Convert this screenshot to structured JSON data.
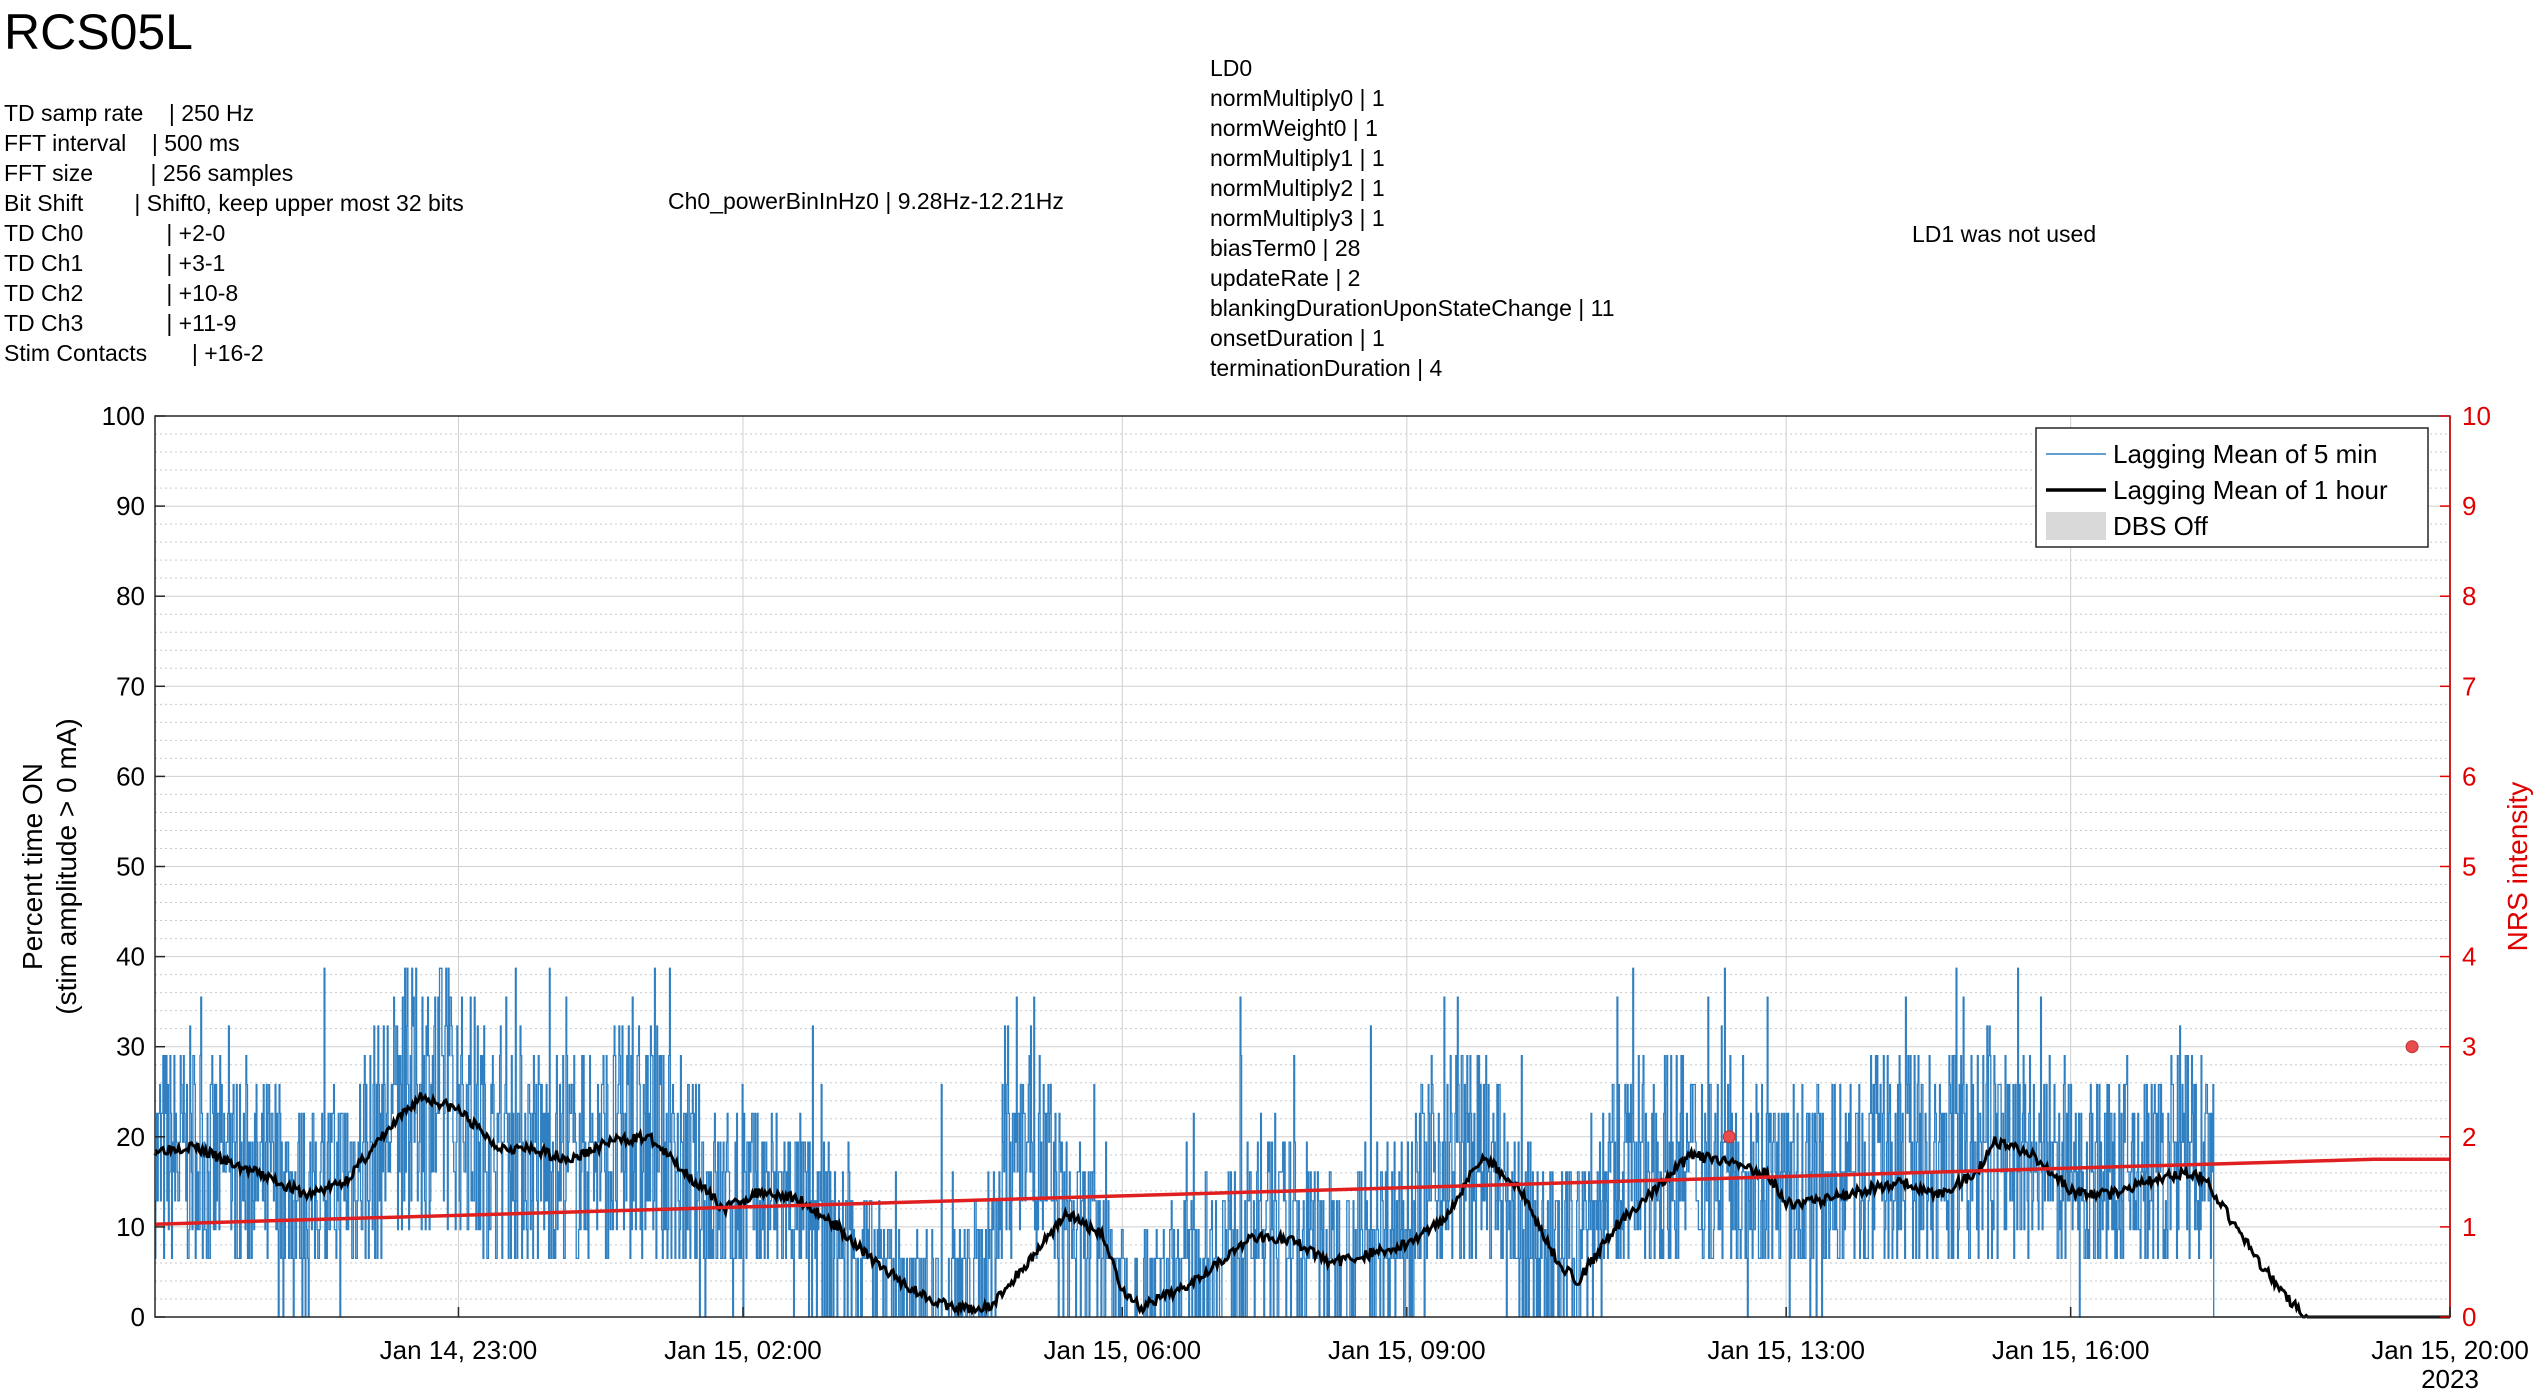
{
  "title": "RCS05L",
  "td_info": [
    "TD samp rate    | 250 Hz",
    "FFT interval    | 500 ms",
    "FFT size         | 256 samples",
    "Bit Shift        | Shift0, keep upper most 32 bits",
    "TD Ch0             | +2-0",
    "TD Ch1             | +3-1",
    "TD Ch2             | +10-8",
    "TD Ch3             | +11-9",
    "Stim Contacts       | +16-2"
  ],
  "ch0_power": "Ch0_powerBinInHz0 | 9.28Hz-12.21Hz",
  "ld0_info": [
    "LD0",
    "normMultiply0 | 1",
    "normWeight0 | 1",
    "normMultiply1 | 1",
    "normMultiply2 | 1",
    "normMultiply3 | 1",
    "biasTerm0 | 28",
    "updateRate | 2",
    "blankingDurationUponStateChange | 11",
    "onsetDuration | 1",
    "terminationDuration | 4"
  ],
  "ld1_info": "LD1 was not used",
  "colors": {
    "five_min": "#2f7fc1",
    "one_hour": "#000000",
    "trend": "#e02020",
    "nrs_marker": "#e84c4c",
    "dbs_off": "#d9d9d9",
    "right_axis": "#e00000"
  },
  "chart_data": {
    "type": "line",
    "title": "",
    "ylabel": [
      "Percent time ON",
      "(stim amplitude > 0 mA)"
    ],
    "ylabel_right": "NRS intensity",
    "xlim": [
      "2023-01-14 19:48",
      "2023-01-15 20:00"
    ],
    "ylim": [
      0,
      100
    ],
    "ylim_right": [
      0,
      10
    ],
    "yticks": [
      "0",
      "10",
      "20",
      "30",
      "40",
      "50",
      "60",
      "70",
      "80",
      "90",
      "100"
    ],
    "yticks_right": [
      "0",
      "1",
      "2",
      "3",
      "4",
      "5",
      "6",
      "7",
      "8",
      "9",
      "10"
    ],
    "xticks": [
      {
        "t": "2023-01-14 23:00",
        "label": "Jan 14, 23:00"
      },
      {
        "t": "2023-01-15 02:00",
        "label": "Jan 15, 02:00"
      },
      {
        "t": "2023-01-15 06:00",
        "label": "Jan 15, 06:00"
      },
      {
        "t": "2023-01-15 09:00",
        "label": "Jan 15, 09:00"
      },
      {
        "t": "2023-01-15 13:00",
        "label": "Jan 15, 13:00"
      },
      {
        "t": "2023-01-15 16:00",
        "label": "Jan 15, 16:00"
      },
      {
        "t": "2023-01-15 20:00",
        "label": "Jan 15, 20:00"
      }
    ],
    "year_label": "2023",
    "grid": "major vertical and horizontal, minor dotted horizontal",
    "legend_position": "top-right",
    "legend": [
      "Lagging Mean of 5 min",
      "Lagging Mean of 1 hour",
      "DBS Off"
    ],
    "series_one_hour": {
      "name": "Lagging Mean of 1 hour",
      "points": [
        [
          "2023-01-14 19:48",
          18.5
        ],
        [
          "2023-01-14 20:12",
          19
        ],
        [
          "2023-01-14 20:36",
          17
        ],
        [
          "2023-01-14 21:00",
          15.5
        ],
        [
          "2023-01-14 21:24",
          13.5
        ],
        [
          "2023-01-14 21:48",
          15
        ],
        [
          "2023-01-14 22:12",
          20
        ],
        [
          "2023-01-14 22:36",
          24.5
        ],
        [
          "2023-01-14 23:00",
          23
        ],
        [
          "2023-01-14 23:24",
          19
        ],
        [
          "2023-01-14 23:48",
          18.5
        ],
        [
          "2023-01-15 00:12",
          17.5
        ],
        [
          "2023-01-15 00:36",
          19.5
        ],
        [
          "2023-01-15 01:00",
          20
        ],
        [
          "2023-01-15 01:24",
          16
        ],
        [
          "2023-01-15 01:48",
          12
        ],
        [
          "2023-01-15 02:12",
          14
        ],
        [
          "2023-01-15 02:36",
          13
        ],
        [
          "2023-01-15 03:00",
          10
        ],
        [
          "2023-01-15 03:24",
          6
        ],
        [
          "2023-01-15 03:48",
          3
        ],
        [
          "2023-01-15 04:12",
          1
        ],
        [
          "2023-01-15 04:36",
          1
        ],
        [
          "2023-01-15 05:00",
          6
        ],
        [
          "2023-01-15 05:24",
          11.5
        ],
        [
          "2023-01-15 05:48",
          9
        ],
        [
          "2023-01-15 06:00",
          3
        ],
        [
          "2023-01-15 06:12",
          1
        ],
        [
          "2023-01-15 06:36",
          3
        ],
        [
          "2023-01-15 07:00",
          6
        ],
        [
          "2023-01-15 07:24",
          9
        ],
        [
          "2023-01-15 07:48",
          8.5
        ],
        [
          "2023-01-15 08:12",
          6
        ],
        [
          "2023-01-15 08:36",
          7
        ],
        [
          "2023-01-15 09:00",
          8
        ],
        [
          "2023-01-15 09:24",
          11
        ],
        [
          "2023-01-15 09:48",
          18
        ],
        [
          "2023-01-15 10:12",
          14
        ],
        [
          "2023-01-15 10:36",
          6
        ],
        [
          "2023-01-15 10:48",
          4
        ],
        [
          "2023-01-15 11:12",
          10
        ],
        [
          "2023-01-15 11:36",
          14
        ],
        [
          "2023-01-15 12:00",
          18
        ],
        [
          "2023-01-15 12:24",
          17
        ],
        [
          "2023-01-15 12:48",
          16
        ],
        [
          "2023-01-15 13:00",
          12.5
        ],
        [
          "2023-01-15 13:24",
          13
        ],
        [
          "2023-01-15 13:48",
          14
        ],
        [
          "2023-01-15 14:12",
          15
        ],
        [
          "2023-01-15 14:36",
          13.5
        ],
        [
          "2023-01-15 15:00",
          16
        ],
        [
          "2023-01-15 15:12",
          19.5
        ],
        [
          "2023-01-15 15:36",
          18
        ],
        [
          "2023-01-15 16:00",
          14
        ],
        [
          "2023-01-15 16:24",
          13.5
        ],
        [
          "2023-01-15 16:48",
          15
        ],
        [
          "2023-01-15 17:12",
          16
        ],
        [
          "2023-01-15 17:24",
          15.5
        ],
        [
          "2023-01-15 17:48",
          9
        ],
        [
          "2023-01-15 18:12",
          3
        ],
        [
          "2023-01-15 18:30",
          0
        ],
        [
          "2023-01-15 20:00",
          0
        ]
      ]
    },
    "series_five_min": {
      "name": "Lagging Mean of 5 min",
      "seed": 7,
      "points": [
        [
          "2023-01-14 19:48",
          17
        ],
        [
          "2023-01-14 20:12",
          18
        ],
        [
          "2023-01-14 20:36",
          16
        ],
        [
          "2023-01-14 21:00",
          15
        ],
        [
          "2023-01-14 21:24",
          13
        ],
        [
          "2023-01-14 21:48",
          15
        ],
        [
          "2023-01-14 22:12",
          21
        ],
        [
          "2023-01-14 22:36",
          25
        ],
        [
          "2023-01-14 23:00",
          23
        ],
        [
          "2023-01-14 23:24",
          19
        ],
        [
          "2023-01-14 23:48",
          18
        ],
        [
          "2023-01-15 00:12",
          17
        ],
        [
          "2023-01-15 00:36",
          19
        ],
        [
          "2023-01-15 01:00",
          19
        ],
        [
          "2023-01-15 01:24",
          15
        ],
        [
          "2023-01-15 01:48",
          12
        ],
        [
          "2023-01-15 02:12",
          13
        ],
        [
          "2023-01-15 02:36",
          12
        ],
        [
          "2023-01-15 03:00",
          8
        ],
        [
          "2023-01-15 03:24",
          5
        ],
        [
          "2023-01-15 03:48",
          2
        ],
        [
          "2023-01-15 04:12",
          2
        ],
        [
          "2023-01-15 04:36",
          6
        ],
        [
          "2023-01-15 04:48",
          20
        ],
        [
          "2023-01-15 05:00",
          22
        ],
        [
          "2023-01-15 05:24",
          10
        ],
        [
          "2023-01-15 05:48",
          6
        ],
        [
          "2023-01-15 06:12",
          2
        ],
        [
          "2023-01-15 06:36",
          4
        ],
        [
          "2023-01-15 07:00",
          8
        ],
        [
          "2023-01-15 07:24",
          9
        ],
        [
          "2023-01-15 07:48",
          9
        ],
        [
          "2023-01-15 08:12",
          7
        ],
        [
          "2023-01-15 08:36",
          8
        ],
        [
          "2023-01-15 09:00",
          12
        ],
        [
          "2023-01-15 09:24",
          18
        ],
        [
          "2023-01-15 09:48",
          17
        ],
        [
          "2023-01-15 10:12",
          10
        ],
        [
          "2023-01-15 10:36",
          6
        ],
        [
          "2023-01-15 10:48",
          8
        ],
        [
          "2023-01-15 11:12",
          15
        ],
        [
          "2023-01-15 11:36",
          17
        ],
        [
          "2023-01-15 12:00",
          17
        ],
        [
          "2023-01-15 12:24",
          16
        ],
        [
          "2023-01-15 12:48",
          15
        ],
        [
          "2023-01-15 13:00",
          13
        ],
        [
          "2023-01-15 13:24",
          14
        ],
        [
          "2023-01-15 13:48",
          15
        ],
        [
          "2023-01-15 14:12",
          17
        ],
        [
          "2023-01-15 14:36",
          16
        ],
        [
          "2023-01-15 15:00",
          17
        ],
        [
          "2023-01-15 15:12",
          19
        ],
        [
          "2023-01-15 15:36",
          17
        ],
        [
          "2023-01-15 16:00",
          15
        ],
        [
          "2023-01-15 16:24",
          15
        ],
        [
          "2023-01-15 16:48",
          16
        ],
        [
          "2023-01-15 17:12",
          17
        ],
        [
          "2023-01-15 17:30",
          15
        ],
        [
          "2023-01-15 17:36",
          0
        ],
        [
          "2023-01-15 20:00",
          0
        ]
      ]
    },
    "series_trend": {
      "axis": "left",
      "points": [
        [
          "2023-01-14 19:48",
          10.3
        ],
        [
          "2023-01-15 19:12",
          17.5
        ],
        [
          "2023-01-15 20:00",
          17.5
        ]
      ]
    },
    "series_nrs": {
      "axis": "right",
      "points": [
        [
          "2023-01-15 12:24",
          2.0
        ],
        [
          "2023-01-15 19:36",
          3.0
        ]
      ]
    }
  }
}
